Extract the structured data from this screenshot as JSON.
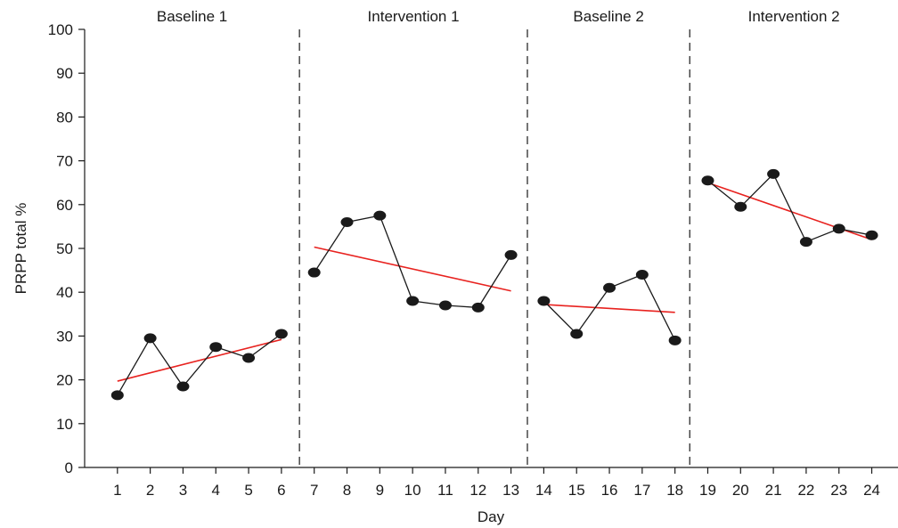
{
  "chart_data": {
    "type": "line",
    "xlabel": "Day",
    "ylabel": "PRPP total %",
    "ylim": [
      0,
      100
    ],
    "yticks": [
      0,
      10,
      20,
      30,
      40,
      50,
      60,
      70,
      80,
      90,
      100
    ],
    "xlim": [
      0,
      24.8
    ],
    "xticks": [
      1,
      2,
      3,
      4,
      5,
      6,
      7,
      8,
      9,
      10,
      11,
      12,
      13,
      14,
      15,
      16,
      17,
      18,
      19,
      20,
      21,
      22,
      23,
      24
    ],
    "grid": false,
    "phase_dividers": [
      6.55,
      13.5,
      18.45
    ],
    "phases": [
      {
        "label": "Baseline 1",
        "days": [
          1,
          2,
          3,
          4,
          5,
          6
        ],
        "values": [
          16.5,
          29.5,
          18.5,
          27.5,
          25,
          30.5
        ],
        "trend": {
          "from": [
            1,
            19.7
          ],
          "to": [
            6,
            29.2
          ]
        }
      },
      {
        "label": "Intervention 1",
        "days": [
          7,
          8,
          9,
          10,
          11,
          12,
          13
        ],
        "values": [
          44.5,
          56,
          57.5,
          38,
          37,
          36.5,
          48.5
        ],
        "trend": {
          "from": [
            7,
            50.3
          ],
          "to": [
            13,
            40.3
          ]
        }
      },
      {
        "label": "Baseline 2",
        "days": [
          14,
          15,
          16,
          17,
          18
        ],
        "values": [
          38,
          30.5,
          41,
          44,
          29
        ],
        "trend": {
          "from": [
            14,
            37.2
          ],
          "to": [
            18,
            35.4
          ]
        }
      },
      {
        "label": "Intervention 2",
        "days": [
          19,
          20,
          21,
          22,
          23,
          24
        ],
        "values": [
          65.5,
          59.5,
          67,
          51.5,
          54.5,
          53
        ],
        "trend": {
          "from": [
            19,
            65
          ],
          "to": [
            24,
            52
          ]
        }
      }
    ]
  },
  "colors": {
    "data": "#1a1a1a",
    "trend": "#e8221f"
  }
}
